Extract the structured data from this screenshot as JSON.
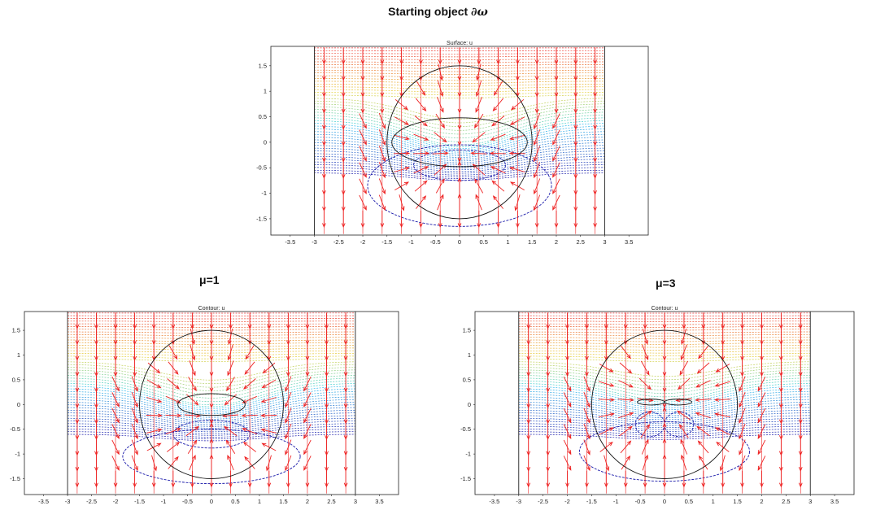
{
  "figure": {
    "title_text": "Starting object ",
    "title_math": "∂ω",
    "panels": [
      {
        "id": "top",
        "subtitle": "",
        "plot_title": "Surface: u",
        "mu": 0
      },
      {
        "id": "mu1",
        "subtitle": "μ=1",
        "plot_title": "Contour: u",
        "mu": 1
      },
      {
        "id": "mu3",
        "subtitle": "μ=3",
        "plot_title": "Contour: u",
        "mu": 3
      }
    ],
    "x_ticks": [
      "-3.5",
      "-3",
      "-2.5",
      "-2",
      "-1.5",
      "-1",
      "-0.5",
      "0",
      "0.5",
      "1",
      "1.5",
      "2",
      "2.5",
      "3",
      "3.5"
    ],
    "y_ticks": [
      "1.5",
      "1",
      "0.5",
      "0",
      "-0.5",
      "-1",
      "-1.5"
    ],
    "colors": {
      "arrow": "#ee2222",
      "contour_warm": "#ee4444",
      "contour_cool": "#22ccdd",
      "contour_low": "#1a1aaa",
      "outline": "#111111"
    }
  }
}
